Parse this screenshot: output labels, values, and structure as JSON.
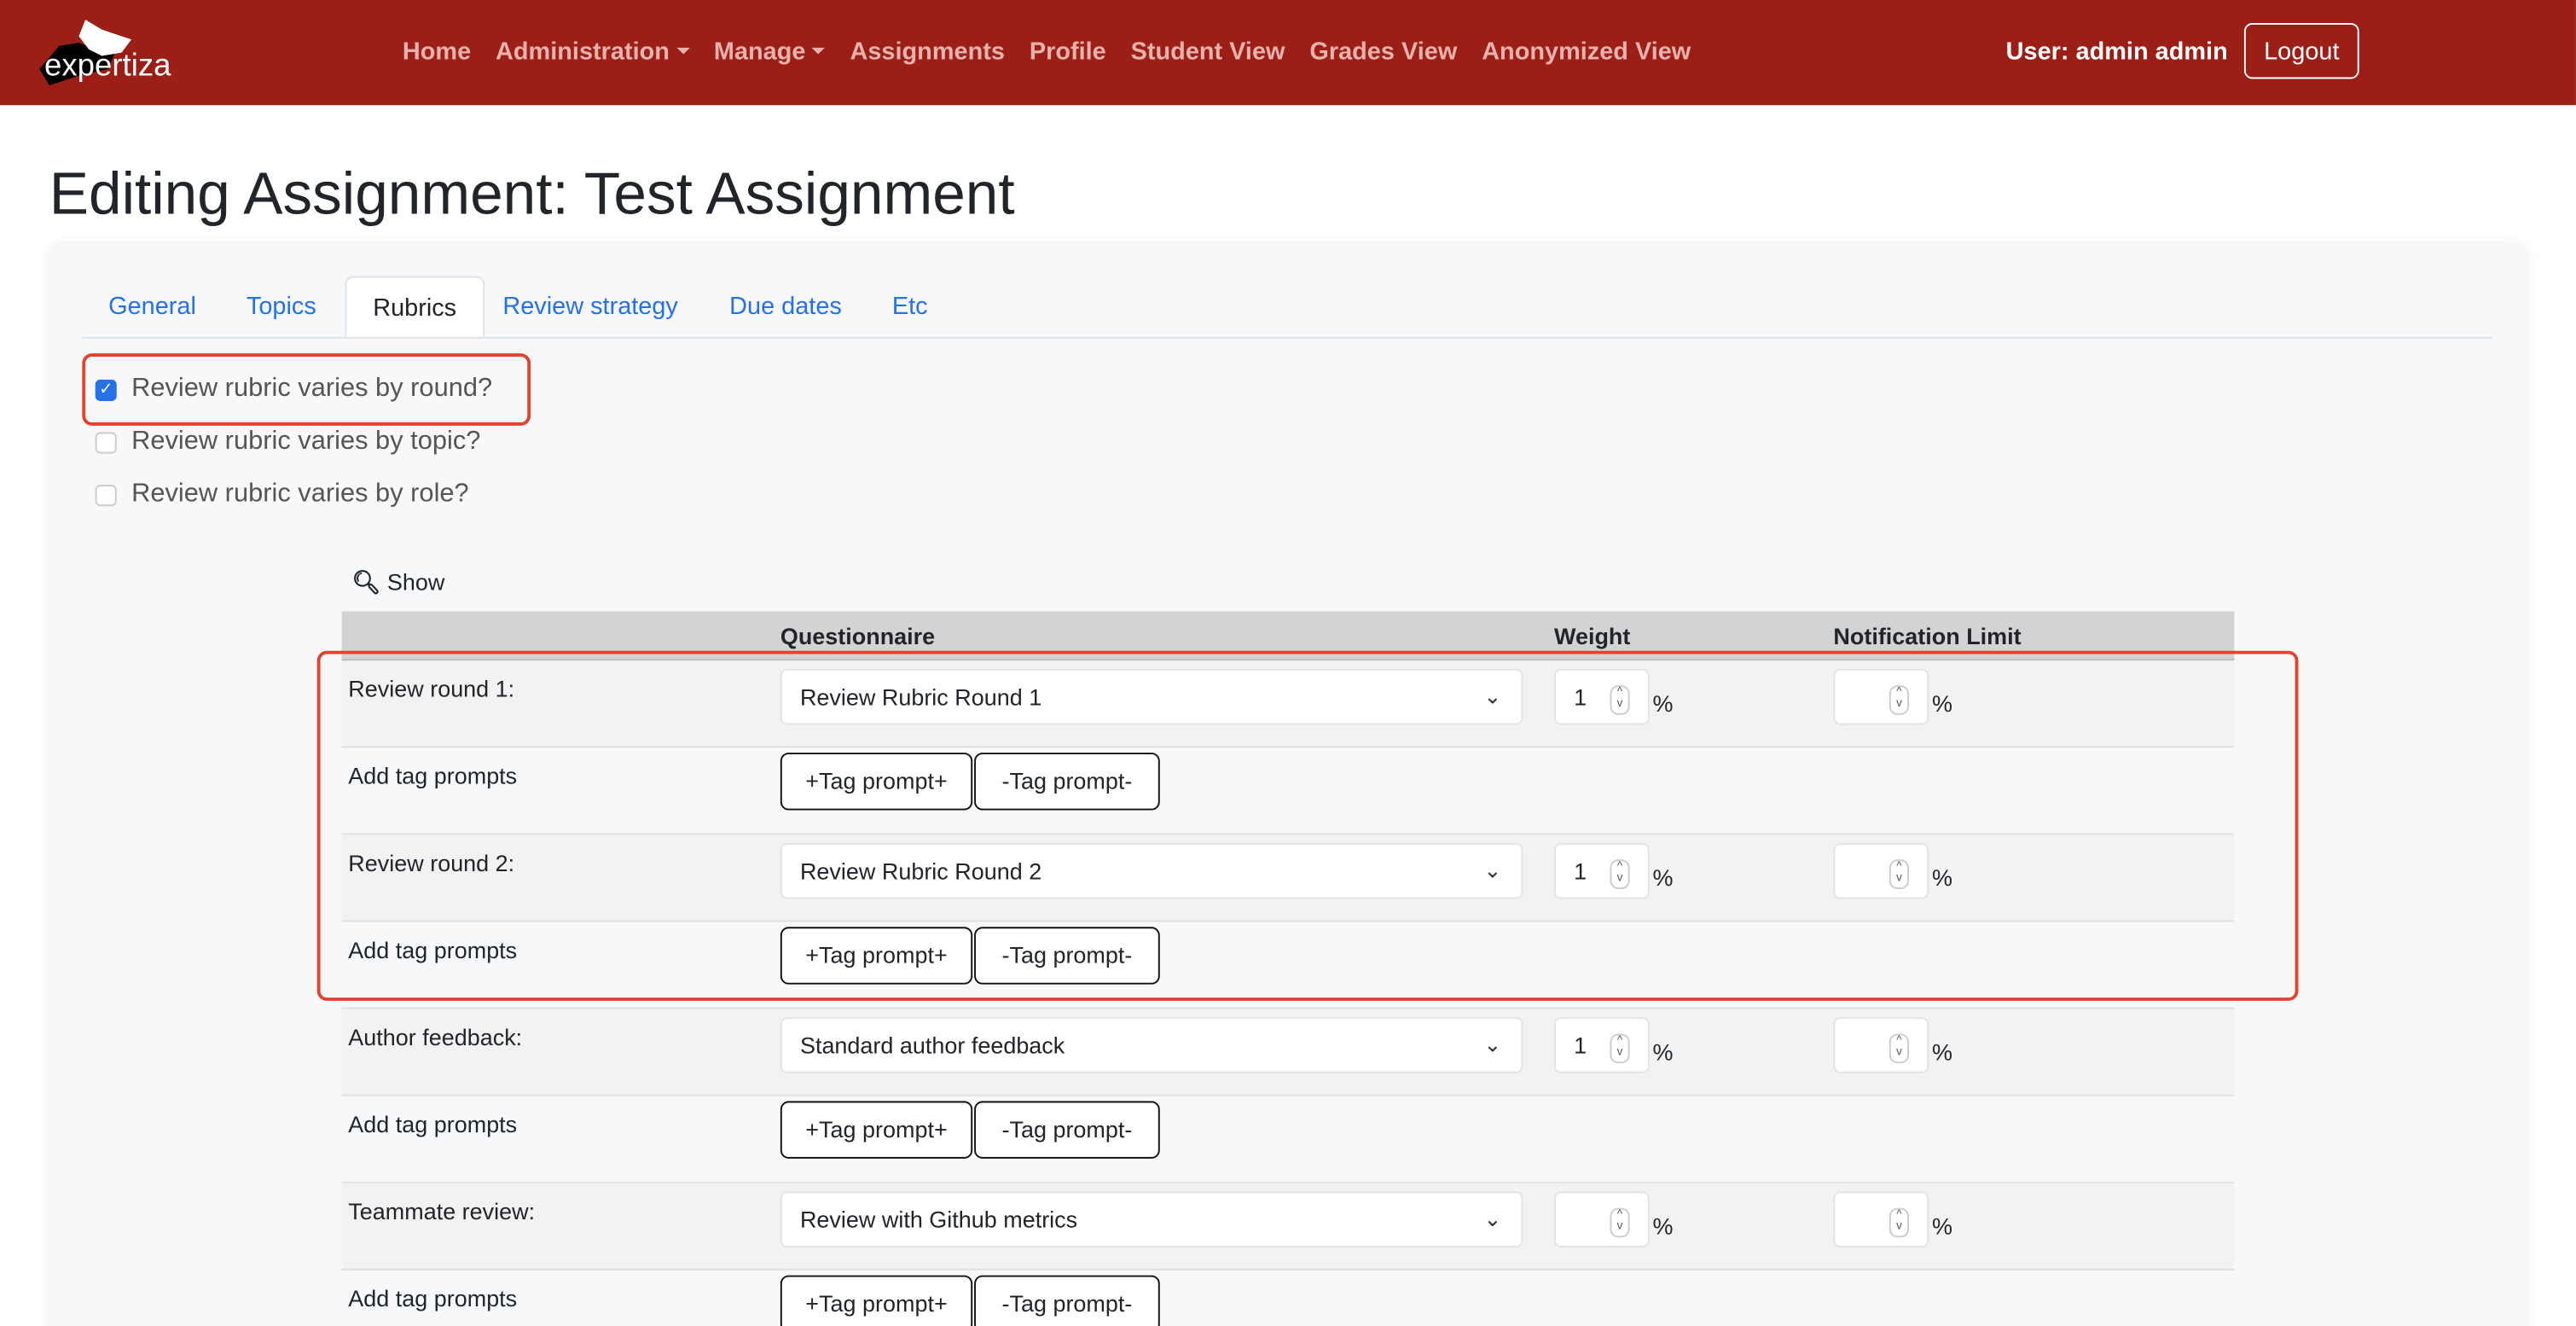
{
  "brand": {
    "name": "expertiza",
    "color": "#9b1f17"
  },
  "nav": {
    "items": [
      "Home",
      "Administration",
      "Manage",
      "Assignments",
      "Profile",
      "Student View",
      "Grades View",
      "Anonymized View"
    ],
    "user": "User: admin admin",
    "logout": "Logout"
  },
  "page": {
    "title": "Editing Assignment: Test Assignment"
  },
  "tabs": [
    "General",
    "Topics",
    "Rubrics",
    "Review strategy",
    "Due dates",
    "Etc"
  ],
  "active_tab": "Rubrics",
  "checkboxes": [
    {
      "label": "Review rubric varies by round?",
      "checked": true
    },
    {
      "label": "Review rubric varies by topic?",
      "checked": false
    },
    {
      "label": "Review rubric varies by role?",
      "checked": false
    }
  ],
  "show_label": "Show",
  "table": {
    "headers": {
      "questionnaire": "Questionnaire",
      "weight": "Weight",
      "notification": "Notification Limit"
    },
    "tag_label": "Add tag prompts",
    "add_tag": "+Tag prompt+",
    "remove_tag": "-Tag prompt-",
    "percent": "%",
    "rows": [
      {
        "label": "Review round 1:",
        "questionnaire": "Review Rubric Round 1",
        "weight": "1",
        "notification": ""
      },
      {
        "label": "Review round 2:",
        "questionnaire": "Review Rubric Round 2",
        "weight": "1",
        "notification": ""
      },
      {
        "label": "Author feedback:",
        "questionnaire": "Standard author feedback",
        "weight": "1",
        "notification": ""
      },
      {
        "label": "Teammate review:",
        "questionnaire": "Review with Github metrics",
        "weight": "",
        "notification": ""
      }
    ]
  }
}
